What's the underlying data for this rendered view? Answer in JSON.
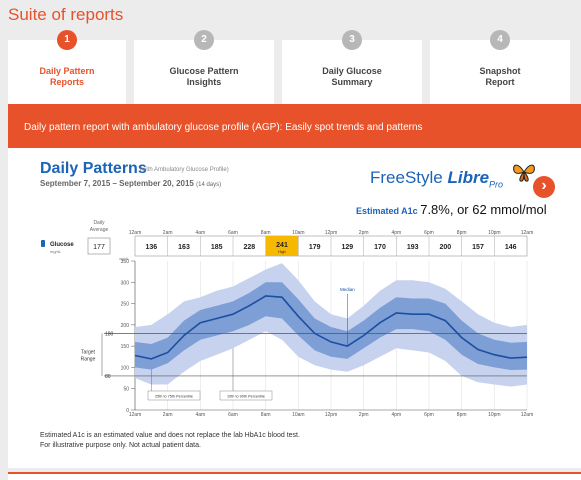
{
  "page_title": "Suite of reports",
  "tabs": [
    {
      "num": "1",
      "label": "Daily Pattern\nReports",
      "active": true
    },
    {
      "num": "2",
      "label": "Glucose Pattern\nInsights",
      "active": false
    },
    {
      "num": "3",
      "label": "Daily Glucose\nSummary",
      "active": false
    },
    {
      "num": "4",
      "label": "Snapshot\nReport",
      "active": false
    }
  ],
  "banner": "Daily pattern report with ambulatory glucose profile (AGP): Easily spot trends and patterns",
  "report": {
    "title": "Daily Patterns",
    "subtitle": "(with Ambulatory Glucose Profile)",
    "dates": "September 7, 2015 – September 20, 2015",
    "days": "(14 days)",
    "brand_main": "FreeStyle ",
    "brand_bold": "Libre",
    "brand_suffix": "Pro",
    "a1c_label": "Estimated A1c",
    "a1c_value": "7.8%, or 62 mmol/mol",
    "daily_average_label": "Daily\nAverage",
    "glucose_label": "Glucose",
    "glucose_unit": "mg/dL",
    "daily_average": "177",
    "notes": [
      "Estimated A1c is an estimated value and does not replace the lab HbA1c blood test.",
      "For illustrative purpose only. Not actual patient data."
    ]
  },
  "colors": {
    "accent": "#e8522a",
    "brand_blue": "#1c64b8",
    "band_outer": "#c7d3ee",
    "band_inner": "#7e9ed6",
    "median": "#1c4fa0",
    "highlight": "#f6b800"
  },
  "icons": {
    "next": "chevron-right-icon",
    "butterfly": "butterfly-icon",
    "sensor": "sensor-icon"
  },
  "chart_data": {
    "type": "line",
    "time_labels": [
      "12am",
      "2am",
      "4am",
      "6am",
      "8am",
      "10am",
      "12pm",
      "2pm",
      "4pm",
      "6pm",
      "8pm",
      "10pm",
      "12am"
    ],
    "bin_values": [
      "136",
      "163",
      "185",
      "228",
      "241",
      "179",
      "129",
      "170",
      "193",
      "200",
      "157",
      "146"
    ],
    "bin_high_index": 4,
    "bin_high_label": "High",
    "y_ticks": [
      "350",
      "300",
      "250",
      "200",
      "150",
      "100",
      "50",
      "0"
    ],
    "y_unit": "mg/dL",
    "ylim": [
      0,
      350
    ],
    "target_range": {
      "low": 80,
      "high": 180,
      "label": "Target\nRange",
      "low_label": "80",
      "high_label": "180"
    },
    "hours": [
      0,
      1,
      2,
      3,
      4,
      5,
      6,
      7,
      8,
      9,
      10,
      11,
      12,
      13,
      14,
      15,
      16,
      17,
      18,
      19,
      20,
      21,
      22,
      23,
      24
    ],
    "median": [
      128,
      120,
      135,
      175,
      205,
      215,
      225,
      245,
      268,
      265,
      220,
      180,
      160,
      150,
      175,
      205,
      228,
      225,
      225,
      210,
      170,
      142,
      130,
      122,
      124
    ],
    "p25": [
      100,
      95,
      110,
      140,
      165,
      175,
      185,
      200,
      220,
      215,
      175,
      140,
      125,
      120,
      145,
      170,
      190,
      190,
      185,
      165,
      130,
      108,
      100,
      94,
      95
    ],
    "p75": [
      160,
      155,
      170,
      210,
      235,
      245,
      255,
      275,
      300,
      300,
      260,
      215,
      195,
      185,
      210,
      240,
      265,
      262,
      262,
      250,
      210,
      180,
      165,
      158,
      160
    ],
    "p10": [
      75,
      60,
      60,
      90,
      115,
      130,
      145,
      165,
      185,
      165,
      125,
      105,
      95,
      90,
      105,
      125,
      145,
      140,
      135,
      115,
      80,
      65,
      60,
      55,
      60
    ],
    "p90": [
      195,
      200,
      225,
      255,
      265,
      280,
      290,
      310,
      330,
      345,
      305,
      255,
      225,
      215,
      245,
      280,
      305,
      305,
      300,
      285,
      255,
      225,
      205,
      195,
      200
    ],
    "annotations": {
      "median": "Median",
      "p25_75": "25th to 75th Percentile",
      "p10_90": "10th to 90th Percentile"
    }
  }
}
